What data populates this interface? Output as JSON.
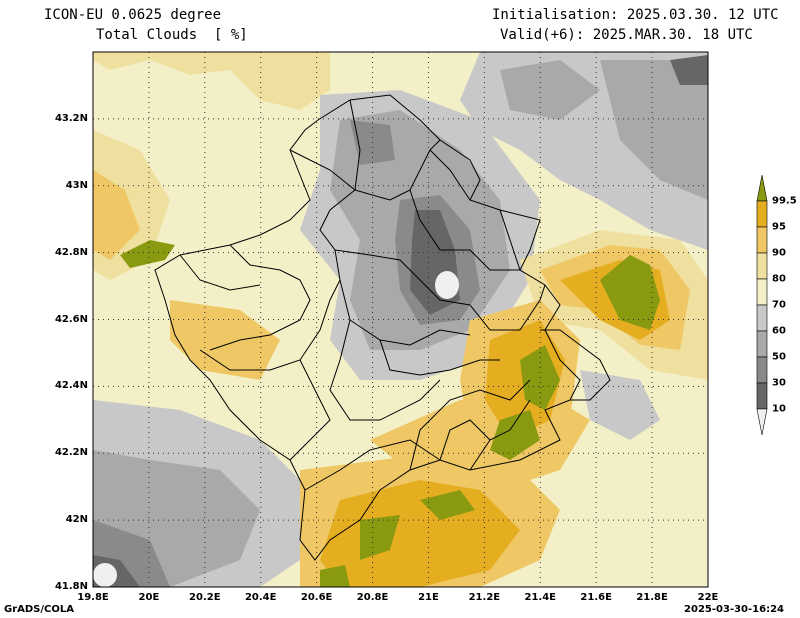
{
  "header": {
    "model": "ICON-EU 0.0625 degree",
    "field": "Total Clouds  [ %]",
    "init": "Initialisation: 2025.03.30. 12 UTC",
    "valid": "Valid(+6): 2025.MAR.30. 18 UTC"
  },
  "axes": {
    "lat_labels": [
      "43.2N",
      "43N",
      "42.8N",
      "42.6N",
      "42.4N",
      "42.2N",
      "42N",
      "41.8N"
    ],
    "lon_labels": [
      "19.8E",
      "20E",
      "20.2E",
      "20.4E",
      "20.6E",
      "20.8E",
      "21E",
      "21.2E",
      "21.4E",
      "21.6E",
      "21.8E",
      "22E"
    ],
    "lat_range": [
      41.8,
      43.4
    ],
    "lon_range": [
      19.8,
      22.0
    ]
  },
  "colorbar": {
    "labels": [
      "99.5",
      "95",
      "90",
      "80",
      "70",
      "60",
      "50",
      "30",
      "10"
    ],
    "colors": [
      "#8a9a10",
      "#e5ad20",
      "#efc865",
      "#efe0a0",
      "#f3f0c8",
      "#c8c8c8",
      "#a9a9a9",
      "#8a8a8a",
      "#666666",
      "#f0f0f0"
    ]
  },
  "footer": {
    "left": "GrADS/COLA",
    "right": "2025-03-30-16:24"
  }
}
